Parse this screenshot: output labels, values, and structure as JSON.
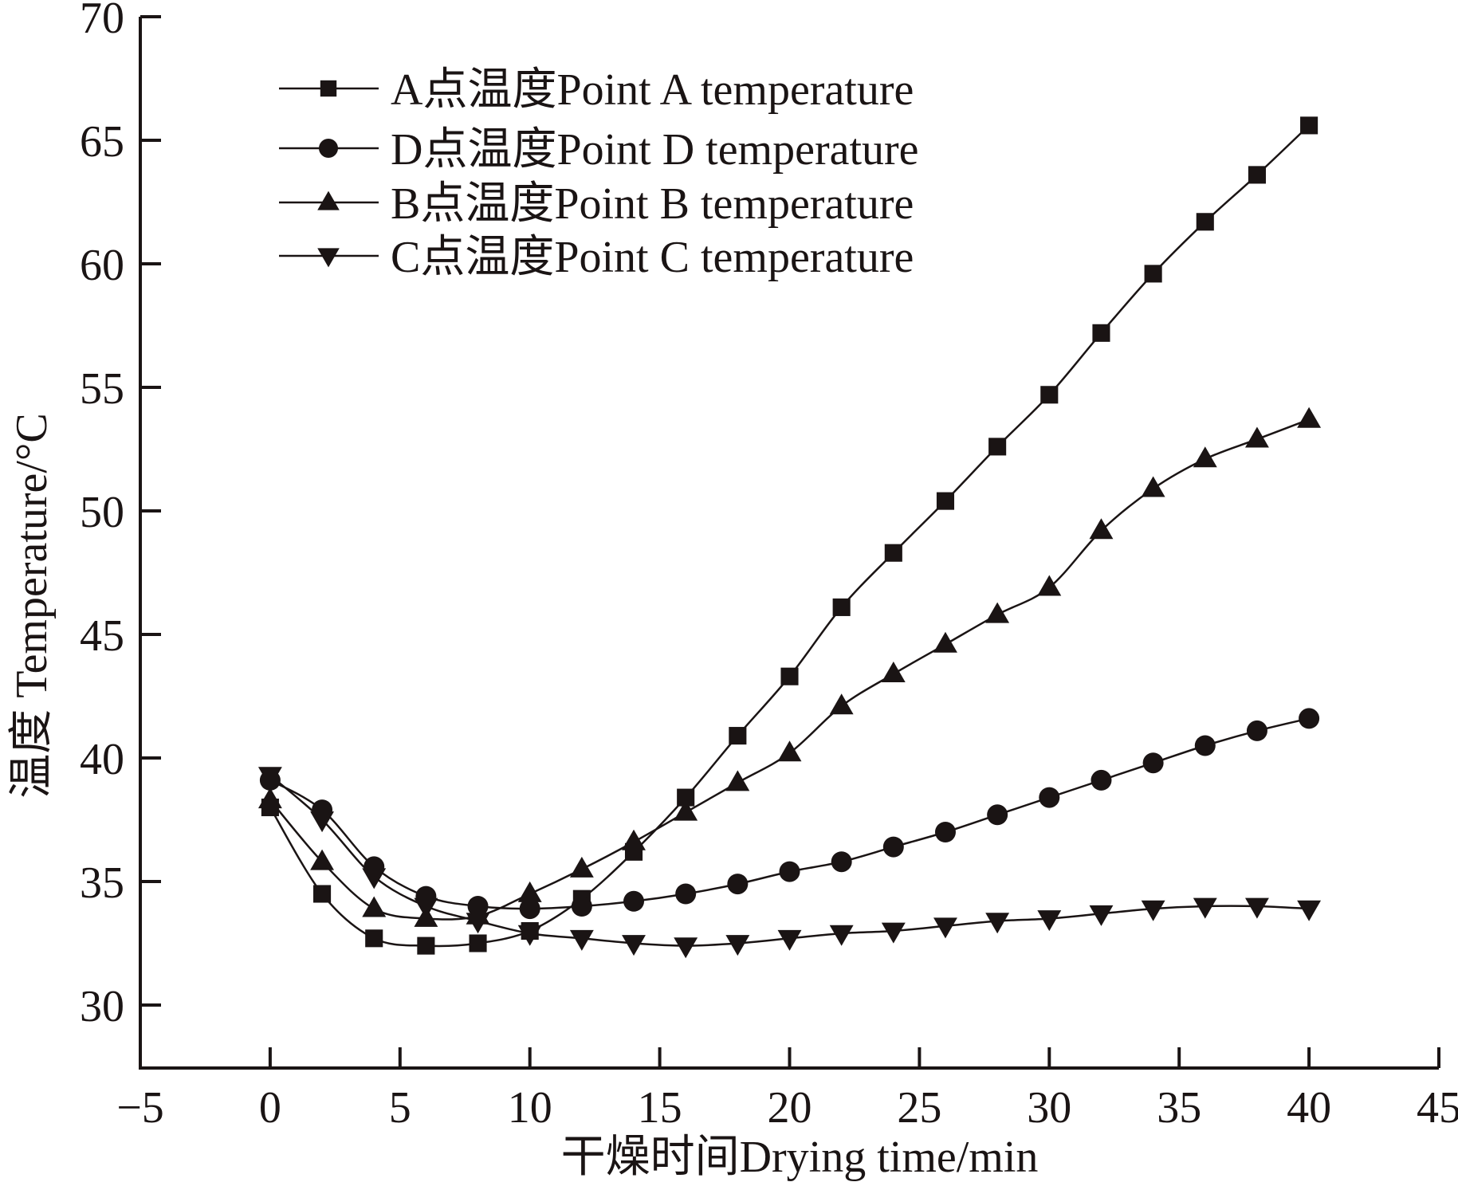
{
  "chart_data": {
    "type": "line",
    "title": "",
    "xlabel": "干燥时间Drying time/min",
    "ylabel": "温度 Temperature/°C",
    "xlim": [
      -5,
      45
    ],
    "ylim": [
      27.5,
      70
    ],
    "xticks": [
      -5,
      0,
      5,
      10,
      15,
      20,
      25,
      30,
      35,
      40,
      45
    ],
    "xtick_labels": [
      "−5",
      "0",
      "5",
      "10",
      "15",
      "20",
      "25",
      "30",
      "35",
      "40",
      "45"
    ],
    "yticks": [
      30,
      35,
      40,
      45,
      50,
      55,
      60,
      65,
      70
    ],
    "ytick_labels": [
      "30",
      "35",
      "40",
      "45",
      "50",
      "55",
      "60",
      "65",
      "70"
    ],
    "grid": false,
    "legend_position": "top-left",
    "x": [
      0,
      2,
      4,
      6,
      8,
      10,
      12,
      14,
      16,
      18,
      20,
      22,
      24,
      26,
      28,
      30,
      32,
      34,
      36,
      38,
      40
    ],
    "series": [
      {
        "name": "A点温度Point A temperature",
        "marker": "square",
        "values": [
          38.0,
          34.5,
          32.7,
          32.4,
          32.5,
          33.0,
          34.3,
          36.2,
          38.4,
          40.9,
          43.3,
          46.1,
          48.3,
          50.4,
          52.6,
          54.7,
          57.2,
          59.6,
          61.7,
          63.6,
          65.6
        ]
      },
      {
        "name": "D点温度Point D temperature",
        "marker": "circle",
        "values": [
          39.1,
          37.9,
          35.6,
          34.4,
          34.0,
          33.9,
          34.0,
          34.2,
          34.5,
          34.9,
          35.4,
          35.8,
          36.4,
          37.0,
          37.7,
          38.4,
          39.1,
          39.8,
          40.5,
          41.1,
          41.6
        ]
      },
      {
        "name": "B点温度Point B temperature",
        "marker": "triangle-up",
        "values": [
          38.3,
          35.8,
          33.9,
          33.5,
          33.6,
          34.5,
          35.5,
          36.6,
          37.8,
          39.0,
          40.2,
          42.1,
          43.4,
          44.6,
          45.8,
          46.9,
          49.2,
          50.9,
          52.1,
          52.9,
          53.7
        ]
      },
      {
        "name": "C点温度Point C temperature",
        "marker": "triangle-down",
        "values": [
          39.3,
          37.5,
          35.2,
          34.0,
          33.4,
          32.9,
          32.7,
          32.5,
          32.4,
          32.5,
          32.7,
          32.9,
          33.0,
          33.2,
          33.4,
          33.5,
          33.7,
          33.9,
          34.0,
          34.0,
          33.9
        ]
      }
    ]
  },
  "colors": {
    "ink": "#1a1414",
    "background": "#ffffff"
  }
}
